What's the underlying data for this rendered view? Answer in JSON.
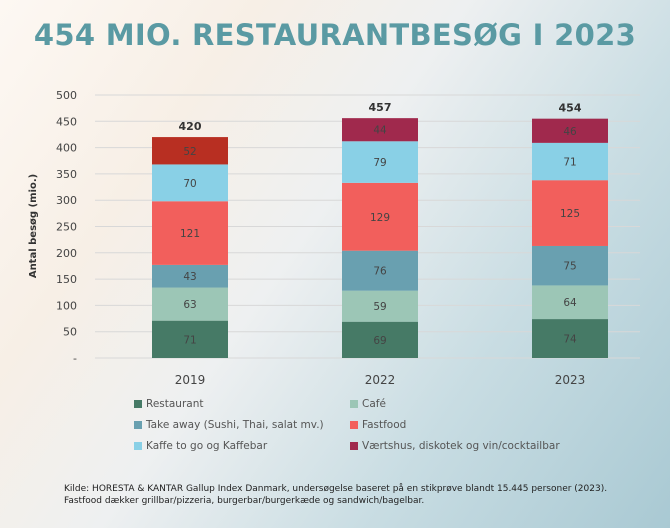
{
  "chart_data": {
    "type": "bar",
    "stacked": true,
    "title": "454 MIO. RESTAURANTBESØG I 2023",
    "ylabel": "Antal besøg (mio.)",
    "xlabel": "",
    "ylim": [
      0,
      500
    ],
    "yticks": [
      0,
      50,
      100,
      150,
      200,
      250,
      300,
      350,
      400,
      450,
      500
    ],
    "ytick_labels": [
      "-",
      "50",
      "100",
      "150",
      "200",
      "250",
      "300",
      "350",
      "400",
      "450",
      "500"
    ],
    "grid": true,
    "legend_position": "bottom",
    "categories": [
      "2019",
      "2022",
      "2023"
    ],
    "totals": [
      "420",
      "457",
      "454"
    ],
    "series": [
      {
        "name": "Restaurant",
        "color": "#467a66",
        "values": [
          71,
          69,
          74
        ]
      },
      {
        "name": "Café",
        "color": "#9cc6b6",
        "values": [
          63,
          59,
          64
        ]
      },
      {
        "name": "Take away (Sushi, Thai, salat mv.)",
        "color": "#69a0b0",
        "values": [
          43,
          76,
          75
        ]
      },
      {
        "name": "Fastfood",
        "color": "#f25f5c",
        "values": [
          121,
          129,
          125
        ]
      },
      {
        "name": "Kaffe to go og Kaffebar",
        "color": "#89d0e6",
        "values": [
          70,
          79,
          71
        ]
      },
      {
        "name": "Værtshus, diskotek og vin/cocktailbar",
        "color": "#a0294d",
        "values": [
          52,
          44,
          46
        ],
        "override_colors": [
          "#b82f22",
          null,
          null
        ]
      }
    ]
  },
  "source": {
    "line1": "Kilde: HORESTA & KANTAR Gallup Index Danmark, undersøgelse baseret på en stikprøve blandt 15.445 personer (2023).",
    "line2": "Fastfood dækker grillbar/pizzeria, burgerbar/burgerkæde og sandwich/bagelbar."
  }
}
